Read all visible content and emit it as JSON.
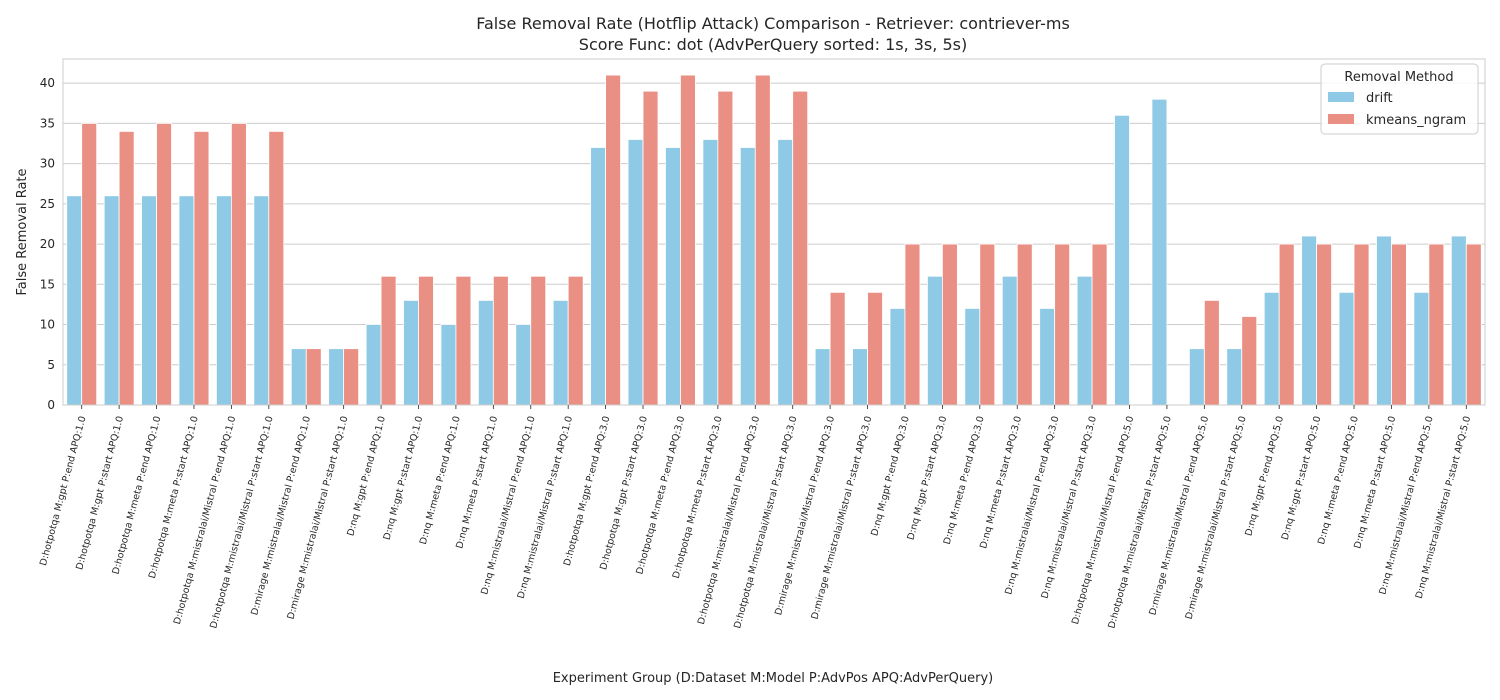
{
  "chart_data": {
    "type": "bar",
    "title": "False Removal Rate (Hotflip Attack) Comparison - Retriever: contriever-ms",
    "subtitle": "Score Func: dot (AdvPerQuery sorted: 1s, 3s, 5s)",
    "xlabel": "Experiment Group (D:Dataset M:Model P:AdvPos APQ:AdvPerQuery)",
    "ylabel": "False Removal Rate",
    "ylim": [
      0,
      43
    ],
    "yticks": [
      0,
      5,
      10,
      15,
      20,
      25,
      30,
      35,
      40
    ],
    "grid": true,
    "legend": {
      "title": "Removal Method",
      "placement": "top-right"
    },
    "categories": [
      "D:hotpotqa M:gpt P:end APQ:1.0",
      "D:hotpotqa M:gpt P:start APQ:1.0",
      "D:hotpotqa M:meta P:end APQ:1.0",
      "D:hotpotqa M:meta P:start APQ:1.0",
      "D:hotpotqa M:mistralai/Mistral P:end APQ:1.0",
      "D:hotpotqa M:mistralai/Mistral P:start APQ:1.0",
      "D:mirage M:mistralai/Mistral P:end APQ:1.0",
      "D:mirage M:mistralai/Mistral P:start APQ:1.0",
      "D:nq M:gpt P:end APQ:1.0",
      "D:nq M:gpt P:start APQ:1.0",
      "D:nq M:meta P:end APQ:1.0",
      "D:nq M:meta P:start APQ:1.0",
      "D:nq M:mistralai/Mistral P:end APQ:1.0",
      "D:nq M:mistralai/Mistral P:start APQ:1.0",
      "D:hotpotqa M:gpt P:end APQ:3.0",
      "D:hotpotqa M:gpt P:start APQ:3.0",
      "D:hotpotqa M:meta P:end APQ:3.0",
      "D:hotpotqa M:meta P:start APQ:3.0",
      "D:hotpotqa M:mistralai/Mistral P:end APQ:3.0",
      "D:hotpotqa M:mistralai/Mistral P:start APQ:3.0",
      "D:mirage M:mistralai/Mistral P:end APQ:3.0",
      "D:mirage M:mistralai/Mistral P:start APQ:3.0",
      "D:nq M:gpt P:end APQ:3.0",
      "D:nq M:gpt P:start APQ:3.0",
      "D:nq M:meta P:end APQ:3.0",
      "D:nq M:meta P:start APQ:3.0",
      "D:nq M:mistralai/Mistral P:end APQ:3.0",
      "D:nq M:mistralai/Mistral P:start APQ:3.0",
      "D:hotpotqa M:mistralai/Mistral P:end APQ:5.0",
      "D:hotpotqa M:mistralai/Mistral P:start APQ:5.0",
      "D:mirage M:mistralai/Mistral P:end APQ:5.0",
      "D:mirage M:mistralai/Mistral P:start APQ:5.0",
      "D:nq M:gpt P:end APQ:5.0",
      "D:nq M:gpt P:start APQ:5.0",
      "D:nq M:meta P:end APQ:5.0",
      "D:nq M:meta P:start APQ:5.0",
      "D:nq M:mistralai/Mistral P:end APQ:5.0",
      "D:nq M:mistralai/Mistral P:start APQ:5.0"
    ],
    "series": [
      {
        "name": "drift",
        "color": "#8ecae6",
        "values": [
          26,
          26,
          26,
          26,
          26,
          26,
          7,
          7,
          10,
          13,
          10,
          13,
          10,
          13,
          32,
          33,
          32,
          33,
          32,
          33,
          7,
          7,
          12,
          16,
          12,
          16,
          12,
          16,
          36,
          38,
          7,
          7,
          14,
          21,
          14,
          21,
          14,
          21
        ]
      },
      {
        "name": "kmeans_ngram",
        "color": "#ea8f83",
        "values": [
          35,
          34,
          35,
          34,
          35,
          34,
          7,
          7,
          16,
          16,
          16,
          16,
          16,
          16,
          41,
          39,
          41,
          39,
          41,
          39,
          14,
          14,
          20,
          20,
          20,
          20,
          20,
          20,
          0,
          0,
          13,
          11,
          20,
          20,
          20,
          20,
          20,
          20
        ]
      }
    ]
  }
}
